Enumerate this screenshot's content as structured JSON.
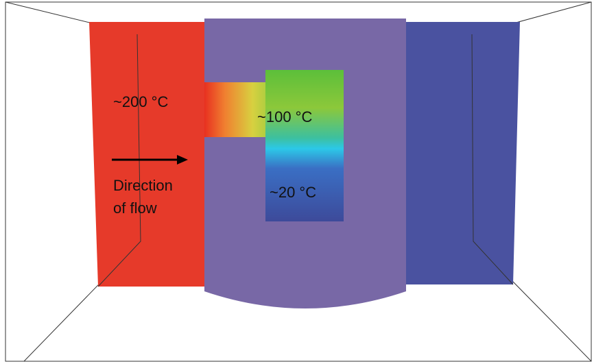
{
  "labels": {
    "hot": "~200 °C",
    "mid": "~100 °C",
    "cold": "~20 °C",
    "flow": [
      "Direction",
      "of flow"
    ]
  }
}
